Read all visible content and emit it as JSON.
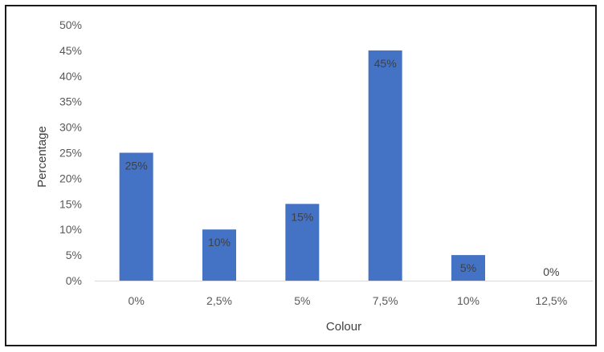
{
  "chart_data": {
    "type": "bar",
    "title": "",
    "xlabel": "Colour",
    "ylabel": "Percentage",
    "categories": [
      "0%",
      "2,5%",
      "5%",
      "7,5%",
      "10%",
      "12,5%"
    ],
    "values": [
      25,
      10,
      15,
      45,
      5,
      0
    ],
    "data_labels": [
      "25%",
      "10%",
      "15%",
      "45%",
      "5%",
      "0%"
    ],
    "ylim": [
      0,
      50
    ],
    "yticks": [
      0,
      5,
      10,
      15,
      20,
      25,
      30,
      35,
      40,
      45,
      50
    ],
    "ytick_labels": [
      "0%",
      "5%",
      "10%",
      "15%",
      "20%",
      "25%",
      "30%",
      "35%",
      "40%",
      "45%",
      "50%"
    ],
    "grid": false,
    "legend": "none",
    "bar_color": "#4472C4"
  }
}
